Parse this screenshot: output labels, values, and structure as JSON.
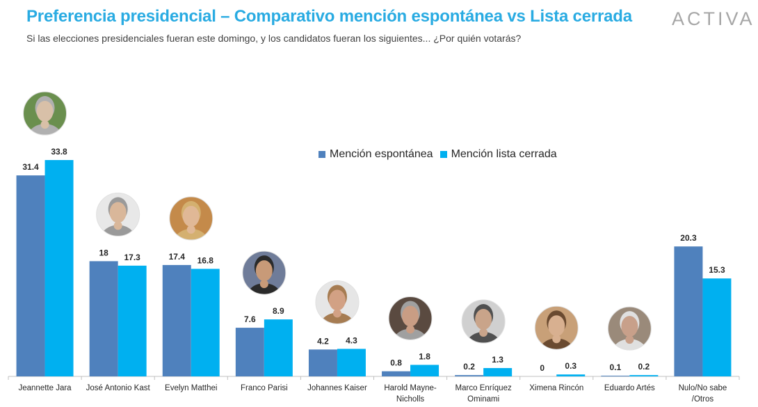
{
  "title": "Preferencia presidencial – Comparativo mención espontánea vs Lista cerrada",
  "subtitle": "Si las elecciones presidenciales fueran este domingo, y los candidatos fueran los siguientes... ¿Por quién votarás?",
  "brand": "ACTIVA",
  "colors": {
    "spontaneous": "#4f81bd",
    "closed_list": "#00b0f0",
    "title": "#29abe2"
  },
  "chart_data": {
    "type": "bar",
    "title": "Preferencia presidencial – Comparativo mención espontánea vs Lista cerrada",
    "xlabel": "",
    "ylabel": "",
    "ylim": [
      0,
      36
    ],
    "grid": false,
    "legend_position": "top-center",
    "categories": [
      [
        "Jeannette Jara"
      ],
      [
        "José Antonio Kast"
      ],
      [
        "Evelyn Matthei"
      ],
      [
        "Franco Parisi"
      ],
      [
        "Johannes Kaiser"
      ],
      [
        "Harold Mayne-",
        "Nicholls"
      ],
      [
        "Marco Enríquez",
        "Ominami"
      ],
      [
        "Ximena Rincón"
      ],
      [
        "Eduardo Artés"
      ],
      [
        "Nulo/No sabe",
        "/Otros"
      ]
    ],
    "series": [
      {
        "name": "Mención espontánea",
        "values": [
          31.4,
          18,
          17.4,
          7.6,
          4.2,
          0.8,
          0.2,
          0,
          0.1,
          20.3
        ]
      },
      {
        "name": "Mención lista cerrada",
        "values": [
          33.8,
          17.3,
          16.8,
          8.9,
          4.3,
          1.8,
          1.3,
          0.3,
          0.2,
          15.3
        ]
      }
    ],
    "candidate_photos": [
      true,
      true,
      true,
      true,
      true,
      true,
      true,
      true,
      true,
      false
    ]
  }
}
